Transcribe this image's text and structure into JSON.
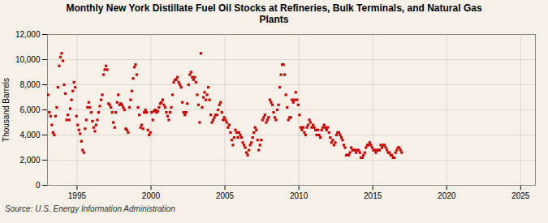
{
  "chart_data": {
    "type": "scatter",
    "title": "Monthly New York Distillate Fuel Oil Stocks at Refineries, Bulk Terminals, and Natural Gas\nPlants",
    "ylabel": "Thousand Barrels",
    "source": "Source: U.S. Energy Information Administration",
    "color": "#cc0000",
    "marker": "square",
    "grid": true,
    "xlim": [
      1993.0,
      2026.0
    ],
    "xticks": [
      1995,
      2000,
      2005,
      2010,
      2015,
      2020,
      2025
    ],
    "ylim": [
      0,
      12000
    ],
    "yticks": [
      0,
      {
        "value": 2000,
        "label": "2,000"
      },
      {
        "value": 4000,
        "label": "4,000"
      },
      {
        "value": 6000,
        "label": "6,000"
      },
      {
        "value": 8000,
        "label": "8,000"
      },
      {
        "value": 10000,
        "label": "10,000"
      },
      {
        "value": 12000,
        "label": "12,000"
      }
    ],
    "x": [
      1993.041667,
      1993.125,
      1993.208333,
      1993.291667,
      1993.375,
      1993.458333,
      1993.541667,
      1993.625,
      1993.708333,
      1993.791667,
      1993.875,
      1993.958333,
      1994.041667,
      1994.125,
      1994.208333,
      1994.291667,
      1994.375,
      1994.458333,
      1994.541667,
      1994.625,
      1994.708333,
      1994.791667,
      1994.875,
      1994.958333,
      1995.041667,
      1995.125,
      1995.208333,
      1995.291667,
      1995.375,
      1995.458333,
      1995.541667,
      1995.625,
      1995.708333,
      1995.791667,
      1995.875,
      1995.958333,
      1996.041667,
      1996.125,
      1996.208333,
      1996.291667,
      1996.375,
      1996.458333,
      1996.541667,
      1996.625,
      1996.708333,
      1996.791667,
      1996.875,
      1996.958333,
      1997.041667,
      1997.125,
      1997.208333,
      1997.291667,
      1997.375,
      1997.458333,
      1997.541667,
      1997.625,
      1997.708333,
      1997.791667,
      1997.875,
      1997.958333,
      1998.041667,
      1998.125,
      1998.208333,
      1998.291667,
      1998.375,
      1998.458333,
      1998.541667,
      1998.625,
      1998.708333,
      1998.791667,
      1998.875,
      1998.958333,
      1999.041667,
      1999.125,
      1999.208333,
      1999.291667,
      1999.375,
      1999.458333,
      1999.541667,
      1999.625,
      1999.708333,
      1999.791667,
      1999.875,
      1999.958333,
      2000.041667,
      2000.125,
      2000.208333,
      2000.291667,
      2000.375,
      2000.458333,
      2000.541667,
      2000.625,
      2000.708333,
      2000.791667,
      2000.875,
      2000.958333,
      2001.041667,
      2001.125,
      2001.208333,
      2001.291667,
      2001.375,
      2001.458333,
      2001.541667,
      2001.625,
      2001.708333,
      2001.791667,
      2001.875,
      2001.958333,
      2002.041667,
      2002.125,
      2002.208333,
      2002.291667,
      2002.375,
      2002.458333,
      2002.541667,
      2002.625,
      2002.708333,
      2002.791667,
      2002.875,
      2002.958333,
      2003.041667,
      2003.125,
      2003.208333,
      2003.291667,
      2003.375,
      2003.458333,
      2003.541667,
      2003.625,
      2003.708333,
      2003.791667,
      2003.875,
      2003.958333,
      2004.041667,
      2004.125,
      2004.208333,
      2004.291667,
      2004.375,
      2004.458333,
      2004.541667,
      2004.625,
      2004.708333,
      2004.791667,
      2004.875,
      2004.958333,
      2005.041667,
      2005.125,
      2005.208333,
      2005.291667,
      2005.375,
      2005.458333,
      2005.541667,
      2005.625,
      2005.708333,
      2005.791667,
      2005.875,
      2005.958333,
      2006.041667,
      2006.125,
      2006.208333,
      2006.291667,
      2006.375,
      2006.458333,
      2006.541667,
      2006.625,
      2006.708333,
      2006.791667,
      2006.875,
      2006.958333,
      2007.041667,
      2007.125,
      2007.208333,
      2007.291667,
      2007.375,
      2007.458333,
      2007.541667,
      2007.625,
      2007.708333,
      2007.791667,
      2007.875,
      2007.958333,
      2008.041667,
      2008.125,
      2008.208333,
      2008.291667,
      2008.375,
      2008.458333,
      2008.541667,
      2008.625,
      2008.708333,
      2008.791667,
      2008.875,
      2008.958333,
      2009.041667,
      2009.125,
      2009.208333,
      2009.291667,
      2009.375,
      2009.458333,
      2009.541667,
      2009.625,
      2009.708333,
      2009.791667,
      2009.875,
      2009.958333,
      2010.041667,
      2010.125,
      2010.208333,
      2010.291667,
      2010.375,
      2010.458333,
      2010.541667,
      2010.625,
      2010.708333,
      2010.791667,
      2010.875,
      2010.958333,
      2011.041667,
      2011.125,
      2011.208333,
      2011.291667,
      2011.375,
      2011.458333,
      2011.541667,
      2011.625,
      2011.708333,
      2011.791667,
      2011.875,
      2011.958333,
      2012.041667,
      2012.125,
      2012.208333,
      2012.291667,
      2012.375,
      2012.458333,
      2012.541667,
      2012.625,
      2012.708333,
      2012.791667,
      2012.875,
      2012.958333,
      2013.041667,
      2013.125,
      2013.208333,
      2013.291667,
      2013.375,
      2013.458333,
      2013.541667,
      2013.625,
      2013.708333,
      2013.791667,
      2013.875,
      2013.958333,
      2014.041667,
      2014.125,
      2014.208333,
      2014.291667,
      2014.375,
      2014.458333,
      2014.541667,
      2014.625,
      2014.708333,
      2014.791667,
      2014.875,
      2014.958333,
      2015.041667,
      2015.125,
      2015.208333,
      2015.291667,
      2015.375,
      2015.458333,
      2015.541667,
      2015.625,
      2015.708333,
      2015.791667,
      2015.875,
      2015.958333,
      2016.041667,
      2016.125,
      2016.208333,
      2016.291667,
      2016.375,
      2016.458333,
      2016.541667,
      2016.625,
      2016.708333,
      2016.791667,
      2016.875,
      2016.958333
    ],
    "values": [
      7200,
      5800,
      5500,
      4800,
      4200,
      4000,
      5500,
      6200,
      7800,
      9500,
      10200,
      10500,
      9900,
      8000,
      7300,
      5200,
      5600,
      5200,
      6100,
      6800,
      7500,
      8200,
      7800,
      5500,
      4800,
      4400,
      4100,
      3500,
      2800,
      2600,
      4500,
      5200,
      6200,
      6600,
      6200,
      5800,
      5100,
      4600,
      4300,
      4800,
      5200,
      5800,
      6300,
      6800,
      7200,
      8800,
      9200,
      9500,
      9200,
      6500,
      6400,
      6200,
      5800,
      5000,
      4600,
      5800,
      6600,
      7200,
      6400,
      6500,
      6400,
      6200,
      6000,
      4500,
      4400,
      4200,
      6200,
      6800,
      7500,
      8500,
      9400,
      9600,
      8800,
      6200,
      5600,
      4600,
      4800,
      4500,
      5800,
      6000,
      5800,
      4400,
      4000,
      4200,
      5800,
      5200,
      5900,
      6000,
      5800,
      5900,
      6200,
      6500,
      6600,
      6800,
      6400,
      6200,
      5800,
      5500,
      5200,
      5800,
      6200,
      7200,
      8200,
      8400,
      8400,
      8600,
      8200,
      8000,
      7800,
      6600,
      5800,
      5600,
      5800,
      6500,
      8000,
      8800,
      9000,
      8600,
      8400,
      8600,
      8200,
      7200,
      6400,
      5000,
      10500,
      6200,
      7000,
      7400,
      6800,
      7200,
      7800,
      6800,
      5600,
      5000,
      5200,
      5400,
      5600,
      5600,
      6000,
      6400,
      6600,
      5800,
      5200,
      5400,
      5200,
      5000,
      4600,
      4800,
      4200,
      3600,
      3200,
      3800,
      4400,
      4200,
      3800,
      4200,
      4000,
      3800,
      3400,
      3200,
      3000,
      2600,
      2400,
      2800,
      3200,
      3400,
      3800,
      4200,
      4600,
      4400,
      3600,
      2800,
      3200,
      3600,
      5200,
      5400,
      5600,
      5000,
      5200,
      5400,
      6800,
      6600,
      6400,
      5800,
      5400,
      5200,
      6000,
      6400,
      7800,
      8800,
      9600,
      9600,
      8800,
      7200,
      6200,
      5200,
      5400,
      5400,
      6800,
      6600,
      6800,
      7400,
      6800,
      6400,
      5600,
      4600,
      4400,
      4600,
      4200,
      4000,
      4600,
      4800,
      5200,
      5000,
      4600,
      4800,
      4600,
      4400,
      4000,
      4400,
      4000,
      3800,
      4400,
      4600,
      4800,
      4600,
      4400,
      4600,
      4200,
      3800,
      3400,
      3600,
      3200,
      3400,
      4000,
      4200,
      4200,
      4000,
      3800,
      3600,
      3200,
      3000,
      2400,
      2400,
      2400,
      2600,
      3000,
      2800,
      2800,
      2800,
      2600,
      2800,
      2800,
      2600,
      2200,
      2200,
      2400,
      2600,
      3000,
      3200,
      3200,
      3400,
      3200,
      3000,
      2800,
      2800,
      2600,
      2800,
      2800,
      2800,
      3200,
      3000,
      3200,
      3200,
      3000,
      2800,
      2600,
      2600,
      2400,
      2400,
      2200,
      2200,
      2600,
      2800,
      3000,
      3000,
      2800,
      2600
    ]
  }
}
